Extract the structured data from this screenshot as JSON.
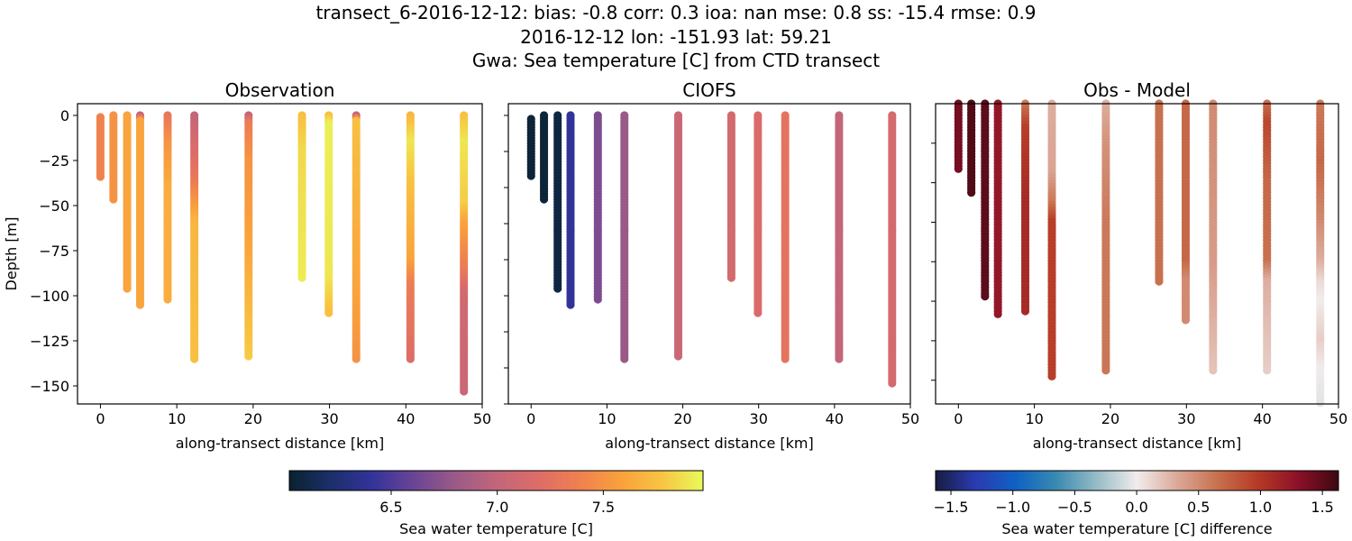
{
  "suptitle": {
    "line1": "transect_6-2016-12-12: bias: -0.8  corr: 0.3  ioa: nan  mse: 0.8  ss: -15.4  rmse: 0.9",
    "line2": "2016-12-12 lon: -151.93 lat: 59.21",
    "line3": "Gwa: Sea temperature [C] from CTD transect"
  },
  "chart_data": [
    {
      "type": "scatter",
      "title": "Observation",
      "xlabel": "along-transect distance [km]",
      "ylabel": "Depth [m]",
      "xlim": [
        -3,
        50
      ],
      "ylim": [
        6.5,
        -160
      ],
      "xticks": [
        0,
        10,
        20,
        30,
        40,
        50
      ],
      "yticks": [
        0,
        -25,
        -50,
        -75,
        -100,
        -125,
        -150
      ],
      "show_yticklabels": true,
      "colormap": "thermal",
      "clim": [
        6.02,
        7.97
      ],
      "profiles": [
        {
          "x": 0.0,
          "depth": [
            -1,
            -35
          ],
          "value": [
            7.4,
            7.4
          ]
        },
        {
          "x": 1.7,
          "depth": [
            0,
            -47
          ],
          "value": [
            7.5,
            7.5
          ]
        },
        {
          "x": 3.5,
          "depth": [
            0,
            -96
          ],
          "value": [
            7.6,
            7.6
          ]
        },
        {
          "x": 5.2,
          "depth": [
            0,
            -3,
            -106
          ],
          "value": [
            7.0,
            7.6,
            7.6
          ]
        },
        {
          "x": 8.8,
          "depth": [
            0,
            -15,
            -40,
            -102
          ],
          "value": [
            7.3,
            7.5,
            7.65,
            7.65
          ]
        },
        {
          "x": 12.3,
          "depth": [
            0,
            -35,
            -50,
            -60,
            -136
          ],
          "value": [
            7.0,
            7.3,
            7.55,
            7.7,
            7.75
          ]
        },
        {
          "x": 19.4,
          "depth": [
            0,
            -4,
            -25,
            -70,
            -134
          ],
          "value": [
            7.0,
            7.35,
            7.5,
            7.6,
            7.8
          ]
        },
        {
          "x": 26.4,
          "depth": [
            0,
            -20,
            -91
          ],
          "value": [
            7.75,
            7.85,
            7.92
          ]
        },
        {
          "x": 29.9,
          "depth": [
            0,
            -5,
            -90,
            -110
          ],
          "value": [
            7.75,
            7.93,
            7.9,
            7.75
          ]
        },
        {
          "x": 33.5,
          "depth": [
            0,
            -3,
            -100,
            -135
          ],
          "value": [
            7.0,
            7.75,
            7.6,
            7.5
          ]
        },
        {
          "x": 40.6,
          "depth": [
            0,
            -15,
            -40,
            -80,
            -95,
            -135
          ],
          "value": [
            7.7,
            7.9,
            7.75,
            7.6,
            7.35,
            7.2
          ]
        },
        {
          "x": 47.6,
          "depth": [
            0,
            -15,
            -50,
            -60,
            -85,
            -100,
            -153
          ],
          "value": [
            7.75,
            7.9,
            7.8,
            7.6,
            7.35,
            7.1,
            7.05
          ]
        }
      ]
    },
    {
      "type": "scatter",
      "title": "CIOFS",
      "xlabel": "along-transect distance [km]",
      "xlim": [
        -3,
        50
      ],
      "ylim": [
        6.5,
        -160
      ],
      "xticks": [
        0,
        10,
        20,
        30,
        40,
        50
      ],
      "yticks": [
        0,
        -20,
        -40,
        -60,
        -80,
        -100,
        -120,
        -140,
        -160
      ],
      "show_yticklabels": false,
      "colormap": "thermal",
      "clim": [
        6.02,
        7.97
      ],
      "profiles": [
        {
          "x": 0.0,
          "depth": [
            -2,
            -34
          ],
          "value": [
            6.05,
            6.05
          ]
        },
        {
          "x": 1.7,
          "depth": [
            0,
            -47
          ],
          "value": [
            6.05,
            6.05
          ]
        },
        {
          "x": 3.5,
          "depth": [
            0,
            -96
          ],
          "value": [
            6.08,
            6.08
          ]
        },
        {
          "x": 5.2,
          "depth": [
            0,
            -105
          ],
          "value": [
            6.4,
            6.4
          ]
        },
        {
          "x": 8.8,
          "depth": [
            0,
            -102
          ],
          "value": [
            6.68,
            6.68
          ]
        },
        {
          "x": 12.3,
          "depth": [
            0,
            -136
          ],
          "value": [
            6.8,
            6.8
          ]
        },
        {
          "x": 19.4,
          "depth": [
            0,
            -134
          ],
          "value": [
            7.05,
            7.05
          ]
        },
        {
          "x": 26.4,
          "depth": [
            0,
            -91
          ],
          "value": [
            7.12,
            7.12
          ]
        },
        {
          "x": 29.9,
          "depth": [
            0,
            -110
          ],
          "value": [
            7.17,
            7.17
          ]
        },
        {
          "x": 33.5,
          "depth": [
            0,
            -135
          ],
          "value": [
            7.27,
            7.27
          ]
        },
        {
          "x": 40.6,
          "depth": [
            0,
            -135
          ],
          "value": [
            7.0,
            7.0
          ]
        },
        {
          "x": 47.6,
          "depth": [
            0,
            -149
          ],
          "value": [
            7.12,
            7.12
          ]
        }
      ]
    },
    {
      "type": "scatter",
      "title": "Obs - Model",
      "xlabel": "along-transect distance [km]",
      "xlim": [
        -3,
        50
      ],
      "ylim": [
        0,
        -152
      ],
      "xticks": [
        0,
        10,
        20,
        30,
        40,
        50
      ],
      "yticks": [
        -20,
        -40,
        -60,
        -80,
        -100,
        -120,
        -140
      ],
      "show_yticklabels": false,
      "colormap": "balance",
      "clim": [
        -1.624,
        1.63
      ],
      "profiles": [
        {
          "x": 0.0,
          "depth": [
            0,
            -33
          ],
          "value": [
            1.4,
            1.4
          ]
        },
        {
          "x": 1.7,
          "depth": [
            0,
            -45
          ],
          "value": [
            1.55,
            1.55
          ]
        },
        {
          "x": 3.5,
          "depth": [
            0,
            -98
          ],
          "value": [
            1.5,
            1.5
          ]
        },
        {
          "x": 5.2,
          "depth": [
            0,
            -107
          ],
          "value": [
            1.25,
            1.25
          ]
        },
        {
          "x": 8.8,
          "depth": [
            0,
            -12,
            -50,
            -105
          ],
          "value": [
            0.6,
            0.95,
            1.1,
            1.1
          ]
        },
        {
          "x": 12.3,
          "depth": [
            0,
            -35,
            -50,
            -60,
            -138
          ],
          "value": [
            0.3,
            0.35,
            0.6,
            0.95,
            0.95
          ]
        },
        {
          "x": 19.4,
          "depth": [
            0,
            -20,
            -60,
            -135
          ],
          "value": [
            0.3,
            0.45,
            0.6,
            0.62
          ]
        },
        {
          "x": 26.4,
          "depth": [
            0,
            -90
          ],
          "value": [
            0.65,
            0.65
          ]
        },
        {
          "x": 29.9,
          "depth": [
            0,
            -80,
            -90,
            -110
          ],
          "value": [
            0.7,
            0.7,
            0.5,
            0.5
          ]
        },
        {
          "x": 33.5,
          "depth": [
            0,
            -80,
            -135
          ],
          "value": [
            0.5,
            0.4,
            0.2
          ]
        },
        {
          "x": 40.6,
          "depth": [
            0,
            -10,
            -40,
            -80,
            -90,
            -135
          ],
          "value": [
            0.65,
            0.9,
            0.7,
            0.65,
            0.3,
            0.15
          ]
        },
        {
          "x": 47.6,
          "depth": [
            0,
            -30,
            -60,
            -80,
            -90,
            -100,
            -120,
            -135,
            -152
          ],
          "value": [
            0.6,
            0.7,
            0.5,
            0.3,
            0.1,
            0.0,
            0.15,
            0.0,
            -0.05
          ]
        }
      ]
    }
  ],
  "colorbars": [
    {
      "label": "Sea water temperature [C]",
      "colormap": "thermal",
      "clim": [
        6.02,
        7.97
      ],
      "ticks": [
        "6.5",
        "7.0",
        "7.5"
      ]
    },
    {
      "label": "Sea water temperature [C] difference",
      "colormap": "balance",
      "clim": [
        -1.624,
        1.63
      ],
      "ticks": [
        "−1.5",
        "−1.0",
        "−0.5",
        "0.0",
        "0.5",
        "1.0",
        "1.5"
      ]
    }
  ],
  "colormaps": {
    "thermal": [
      "#0a2230",
      "#1b2f6a",
      "#33339a",
      "#6a4494",
      "#9a5a88",
      "#c2667a",
      "#dd6c68",
      "#ef8050",
      "#f9a03c",
      "#f8c442",
      "#e8fa5b"
    ],
    "balance": [
      "#181c43",
      "#2a3bb0",
      "#0f62c4",
      "#3a8ab0",
      "#96bcc6",
      "#f1ecec",
      "#dba898",
      "#c8704e",
      "#b53a26",
      "#8c1028",
      "#3c0912"
    ]
  }
}
